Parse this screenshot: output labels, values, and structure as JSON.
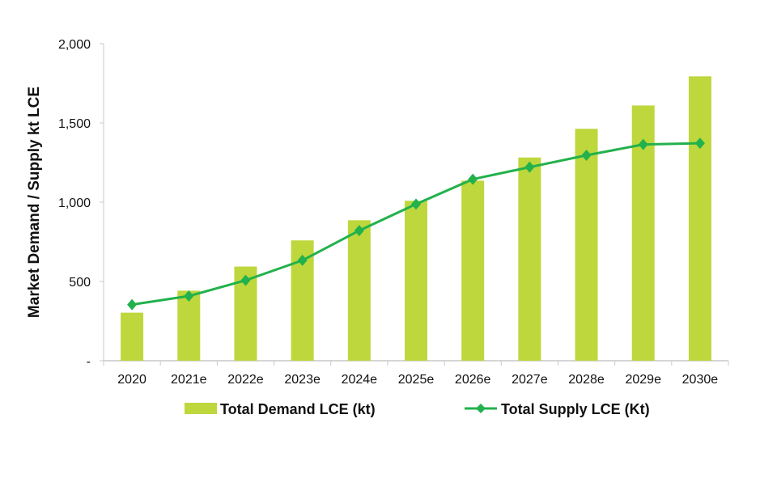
{
  "chart_data": {
    "type": "bar+line",
    "title": "",
    "xlabel": "",
    "ylabel": "Market Demand / Supply kt LCE",
    "ylim": [
      0,
      2000
    ],
    "yticks": [
      0,
      500,
      1000,
      1500,
      2000
    ],
    "ytick_labels": [
      "-",
      "500",
      "1,000",
      "1,500",
      "2,000"
    ],
    "grid": false,
    "legend_position": "bottom",
    "categories": [
      "2020",
      "2021e",
      "2022e",
      "2023e",
      "2024e",
      "2025e",
      "2026e",
      "2027e",
      "2028e",
      "2029e",
      "2030e"
    ],
    "series": [
      {
        "name": "Total Demand LCE (kt)",
        "type": "bar",
        "color": "#bed73c",
        "values": [
          303,
          442,
          594,
          759,
          886,
          1009,
          1136,
          1282,
          1463,
          1610,
          1794
        ]
      },
      {
        "name": "Total Supply LCE (Kt)",
        "type": "line",
        "marker": "diamond",
        "color": "#22b14c",
        "values": [
          354,
          408,
          507,
          633,
          821,
          988,
          1145,
          1221,
          1296,
          1364,
          1372
        ]
      }
    ]
  }
}
